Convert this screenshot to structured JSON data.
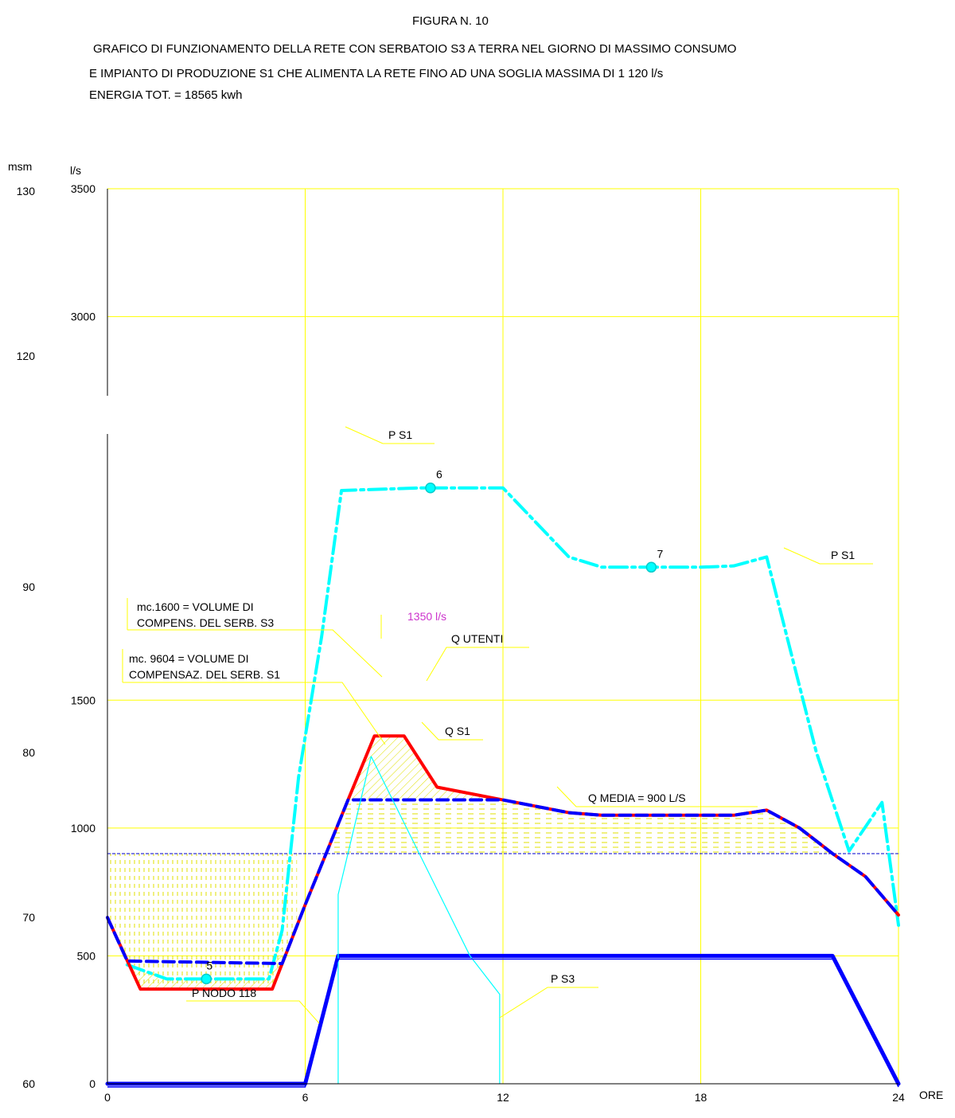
{
  "header": {
    "figure": "FIGURA N. 10",
    "line1": "GRAFICO DI FUNZIONAMENTO DELLA RETE CON SERBATOIO S3 A TERRA NEL GIORNO DI MASSIMO CONSUMO",
    "line2": "E IMPIANTO DI PRODUZIONE S1 CHE ALIMENTA LA RETE FINO AD UNA SOGLIA MASSIMA DI 1 120 l/s",
    "line3": "ENERGIA TOT. = 18565 kwh"
  },
  "chart_data": {
    "type": "line",
    "x_unit": "ORE",
    "y_left_outer_unit": "msm",
    "y_left_inner_unit": "l/s",
    "xlim": [
      0,
      24
    ],
    "x_ticks": [
      "0",
      "6",
      "12",
      "18",
      "24"
    ],
    "ylim_flow": [
      0,
      3500
    ],
    "flow_ticks": [
      "0",
      "500",
      "1000",
      "1500",
      "3000",
      "3500"
    ],
    "msm_ticks": [
      "60",
      "70",
      "80",
      "90",
      "120",
      "130"
    ],
    "grid": true,
    "grid_color": "#ffff00",
    "series": [
      {
        "name": "Q UTENTI",
        "color": "#ff0000",
        "style": "solid",
        "x": [
          0,
          1,
          5,
          6,
          7.3,
          8.1,
          9.0,
          10.0,
          12.0,
          14.0,
          15.0,
          17.0,
          19.0,
          20.0,
          21.0,
          22.0,
          23.0,
          24.0
        ],
        "y": [
          650,
          370,
          370,
          700,
          1110,
          1360,
          1360,
          1160,
          1110,
          1060,
          1050,
          1050,
          1050,
          1070,
          1000,
          900,
          810,
          660
        ]
      },
      {
        "name": "Q S1",
        "color": "#0000ff",
        "style": "dashed",
        "x": [
          0,
          0.6,
          5.3,
          6.0,
          7.3,
          9.0,
          12.0,
          14.0,
          15.0,
          17.0,
          19.0,
          20.0,
          21.0,
          22.0,
          23.0,
          24.0
        ],
        "y": [
          650,
          480,
          470,
          700,
          1110,
          1110,
          1110,
          1060,
          1050,
          1050,
          1050,
          1070,
          1000,
          900,
          810,
          660
        ]
      },
      {
        "name": "P S1",
        "color": "#00ffff",
        "style": "dashdot",
        "x": [
          0.6,
          1.8,
          4.9,
          5.3,
          5.8,
          6.5,
          7.1,
          9.5,
          12.0,
          14.0,
          15.0,
          17.0,
          18.0,
          19.0,
          20.0,
          21.5,
          22.5,
          23.5,
          24.0
        ],
        "y": [
          465,
          410,
          410,
          600,
          1200,
          1750,
          2320,
          2330,
          2330,
          2060,
          2020,
          2020,
          2020,
          2025,
          2060,
          1300,
          910,
          1100,
          620
        ]
      },
      {
        "name": "P NODO 118",
        "color": "#0000ff",
        "style": "solid-thick",
        "x": [
          0,
          6.0,
          7.0,
          22.0,
          24.0
        ],
        "y": [
          0,
          0,
          500,
          500,
          0
        ]
      },
      {
        "name": "P S3",
        "color": "#00ffff",
        "style": "solid-thin",
        "x": [
          7.0,
          7.0,
          8.0,
          11.0,
          11.9,
          11.9
        ],
        "y": [
          0,
          740,
          1280,
          500,
          350,
          0
        ]
      }
    ],
    "reference_lines": [
      {
        "label": "Q MEDIA = 900 L/S",
        "value": 900,
        "color": "#0000cc"
      }
    ],
    "points": [
      {
        "label": "5",
        "x": 3.0,
        "y": 410
      },
      {
        "label": "6",
        "x": 9.8,
        "y": 2330
      },
      {
        "label": "7",
        "x": 16.5,
        "y": 2020
      }
    ],
    "annotations": {
      "peak": "1350 l/s",
      "peak_color": "#cc33cc",
      "vol_s3_line1": "mc.1600 = VOLUME DI",
      "vol_s3_line2": "COMPENS. DEL SERB. S3",
      "vol_s1_line1": "mc. 9604 = VOLUME DI",
      "vol_s1_line2": "COMPENSAZ. DEL SERB. S1",
      "label_ps1_a": "P S1",
      "label_ps1_b": "P S1",
      "label_qutenti": "Q UTENTI",
      "label_qs1": "Q S1",
      "label_qmedia": "Q MEDIA = 900 L/S",
      "label_pnodo": "P NODO 118",
      "label_ps3": "P S3"
    },
    "units": {
      "msm": "msm",
      "ls": "l/s",
      "ore": "ORE"
    }
  }
}
